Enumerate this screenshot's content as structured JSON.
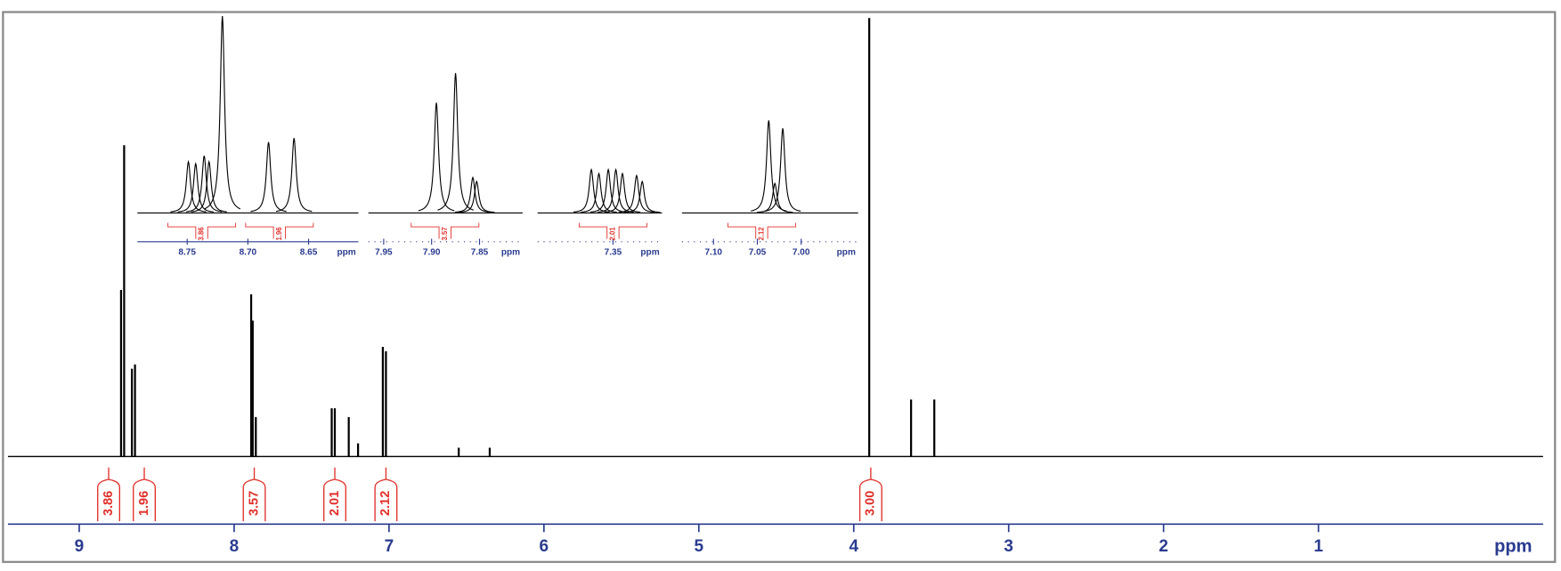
{
  "chart_data": {
    "type": "nmr_spectrum",
    "x_label": "ppm",
    "xlim": [
      9.46,
      -0.45
    ],
    "xticks": [
      9,
      8,
      7,
      6,
      5,
      4,
      3,
      2,
      1
    ],
    "peaks": {
      "x": [
        8.73,
        8.71,
        8.66,
        8.64,
        7.89,
        7.88,
        7.86,
        7.37,
        7.35,
        7.26,
        7.2,
        7.04,
        7.02,
        6.55,
        6.35,
        3.9,
        3.63,
        3.48
      ],
      "values": [
        0.38,
        0.71,
        0.2,
        0.21,
        0.37,
        0.31,
        0.09,
        0.11,
        0.11,
        0.09,
        0.03,
        0.25,
        0.24,
        0.02,
        0.02,
        1.0,
        0.13,
        0.13
      ]
    },
    "integrals": {
      "x": [
        8.81,
        8.58,
        7.87,
        7.35,
        7.02,
        3.89
      ],
      "values": [
        3.86,
        1.96,
        3.57,
        2.01,
        2.12,
        3.0
      ],
      "value_labels": [
        "3.86",
        "1.96",
        "3.57",
        "2.01",
        "2.12",
        "3.00"
      ]
    },
    "insets": [
      {
        "xlim": [
          8.791,
          8.609
        ],
        "xticks": [
          8.75,
          {
            "value": 8.7,
            "label": "8.70"
          },
          8.65
        ],
        "x_label": "ppm",
        "peaks": {
          "x": [
            8.749,
            8.743,
            8.736,
            8.732,
            8.721,
            8.683,
            8.662
          ],
          "values": [
            0.26,
            0.25,
            0.29,
            0.26,
            1.0,
            0.36,
            0.38
          ]
        },
        "integrals": {
          "x": [
            8.738,
            8.674
          ],
          "values": [
            3.86,
            1.96
          ],
          "value_labels": [
            "3.86",
            "1.96"
          ]
        }
      },
      {
        "xlim": [
          7.966,
          7.805
        ],
        "xticks": [
          7.95,
          {
            "value": 7.9,
            "label": "7.90"
          },
          7.85
        ],
        "x_label": "ppm",
        "peaks": {
          "x": [
            7.895,
            7.875,
            7.857,
            7.853
          ],
          "values": [
            0.56,
            0.71,
            0.18,
            0.16
          ]
        },
        "integrals": {
          "x": [
            7.886
          ],
          "values": [
            3.57
          ],
          "value_labels": [
            "3.57"
          ]
        }
      },
      {
        "xlim": [
          7.43,
          7.298
        ],
        "xticks": [
          7.35
        ],
        "x_label": "ppm",
        "peaks": {
          "x": [
            7.373,
            7.365,
            7.355,
            7.347,
            7.34,
            7.325,
            7.319
          ],
          "values": [
            0.22,
            0.2,
            0.22,
            0.22,
            0.2,
            0.19,
            0.16
          ]
        },
        "integrals": {
          "x": [
            7.35
          ],
          "values": [
            2.01
          ],
          "value_labels": [
            "2.01"
          ]
        }
      },
      {
        "xlim": [
          7.136,
          6.935
        ],
        "xticks": [
          {
            "value": 7.1,
            "label": "7.10"
          },
          7.05,
          {
            "value": 7.0,
            "label": "7.00"
          }
        ],
        "x_label": "ppm",
        "peaks": {
          "x": [
            7.037,
            7.03,
            7.021
          ],
          "values": [
            0.47,
            0.15,
            0.43
          ]
        },
        "integrals": {
          "x": [
            7.045
          ],
          "values": [
            2.12
          ],
          "value_labels": [
            "2.12"
          ]
        }
      }
    ]
  }
}
